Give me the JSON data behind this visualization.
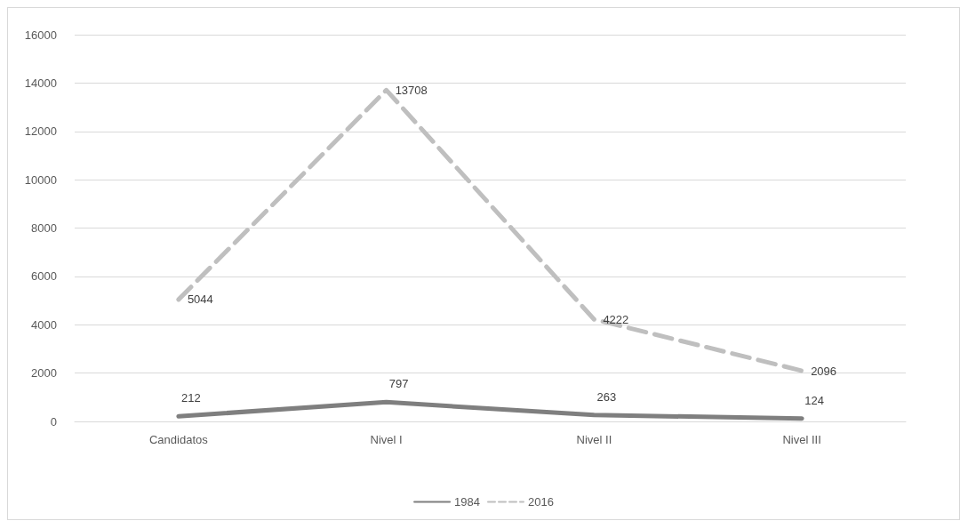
{
  "chart_data": {
    "type": "line",
    "categories": [
      "Candidatos",
      "Nivel I",
      "Nivel II",
      "Nivel III"
    ],
    "series": [
      {
        "name": "1984",
        "color": "#7f7f7f",
        "values": [
          212,
          797,
          263,
          124
        ],
        "line_style": "solid"
      },
      {
        "name": "2016",
        "color": "#bfbfbf",
        "values": [
          5044,
          13708,
          4222,
          2096
        ],
        "line_style": "dashed"
      }
    ],
    "ylim": [
      0,
      16000
    ],
    "yticks": [
      0,
      2000,
      4000,
      6000,
      8000,
      10000,
      12000,
      14000,
      16000
    ],
    "grid": "y",
    "legend": "bottom",
    "marker": "none",
    "data_labels": true
  }
}
